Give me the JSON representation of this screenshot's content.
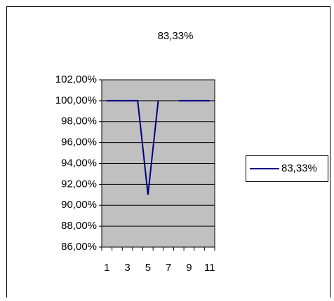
{
  "chart_data": {
    "type": "line",
    "title": "83,33%",
    "categories": [
      1,
      null,
      3,
      null,
      5,
      null,
      7,
      null,
      9,
      null,
      11
    ],
    "series": [
      {
        "name": "83,33%",
        "color": "#000080",
        "values": [
          100,
          100,
          100,
          100,
          91,
          100,
          null,
          100,
          100,
          100,
          100
        ]
      }
    ],
    "ylim": [
      86,
      102
    ],
    "yticks": [
      {
        "value": 86,
        "label": "86,00%"
      },
      {
        "value": 88,
        "label": "88,00%"
      },
      {
        "value": 90,
        "label": "90,00%"
      },
      {
        "value": 92,
        "label": "92,00%"
      },
      {
        "value": 94,
        "label": "94,00%"
      },
      {
        "value": 96,
        "label": "96,00%"
      },
      {
        "value": 98,
        "label": "98,00%"
      },
      {
        "value": 100,
        "label": "100,00%"
      },
      {
        "value": 102,
        "label": "102,00%"
      }
    ],
    "grid": true,
    "legend": "right"
  }
}
